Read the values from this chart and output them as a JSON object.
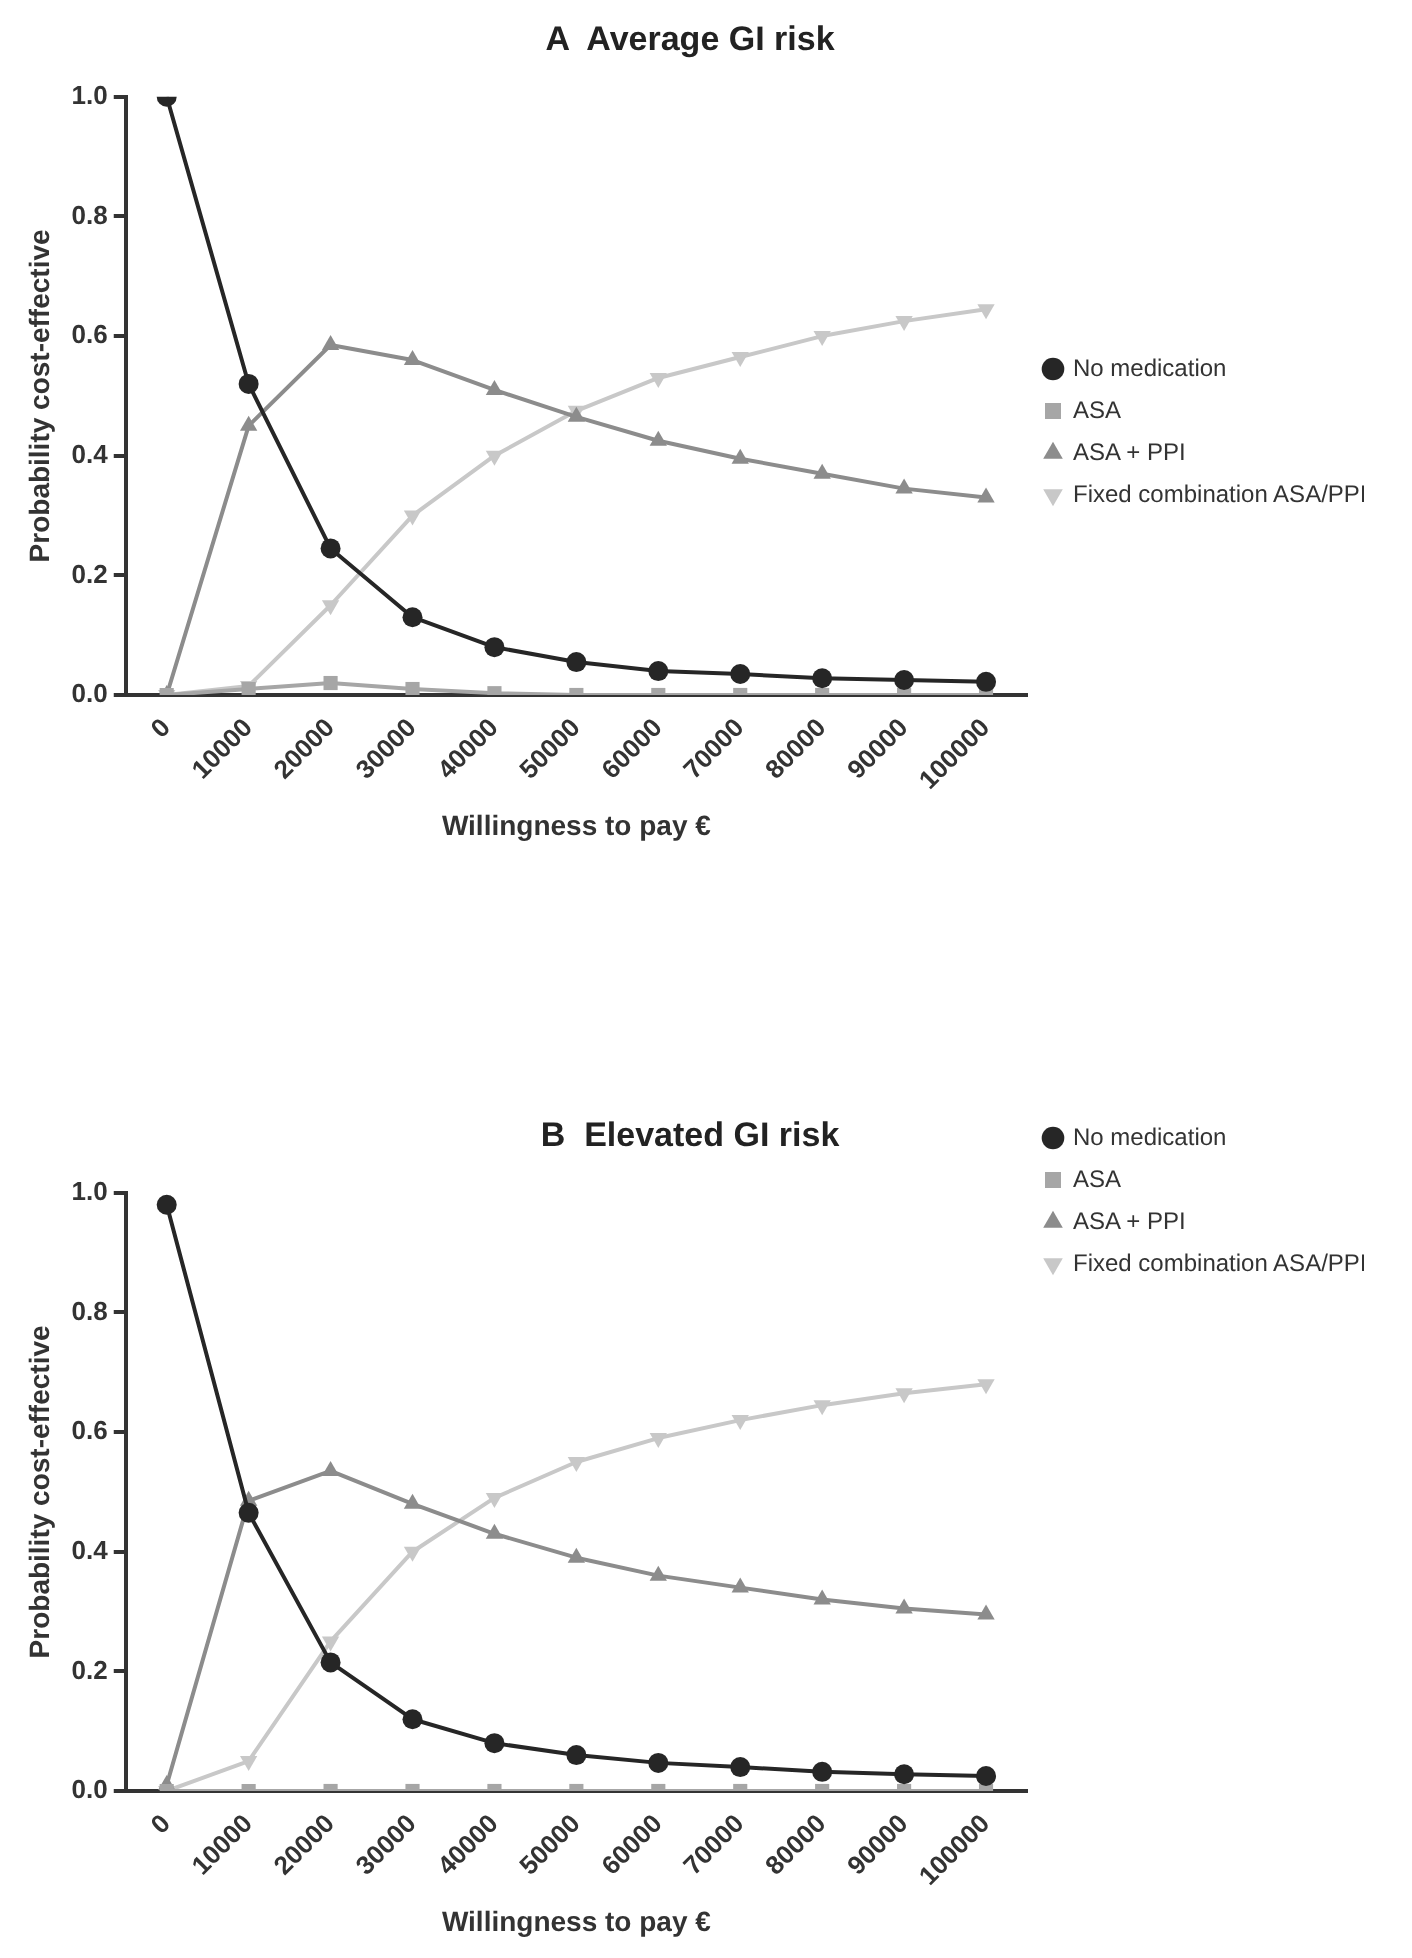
{
  "chart_data": [
    {
      "type": "line",
      "title": "A  Average GI risk",
      "xlabel": "Willingness to pay €",
      "ylabel": "Probability cost-effective",
      "categories": [
        "0",
        "10000",
        "20000",
        "30000",
        "40000",
        "50000",
        "60000",
        "70000",
        "80000",
        "90000",
        "100000"
      ],
      "ylim": [
        0,
        1
      ],
      "yticks": [
        {
          "value": 0,
          "label": "0.0"
        },
        {
          "value": 0.2,
          "label": "0.2"
        },
        {
          "value": 0.4,
          "label": "0.4"
        },
        {
          "value": 0.6,
          "label": "0.6"
        },
        {
          "value": 0.8,
          "label": "0.8"
        },
        {
          "value": 1,
          "label": "1.0"
        }
      ],
      "grid": false,
      "legend": "right",
      "line_style": "solid",
      "series": [
        {
          "name": "No medication",
          "color": "#262626",
          "marker": "circle",
          "values": [
            1.0,
            0.52,
            0.245,
            0.13,
            0.08,
            0.055,
            0.04,
            0.035,
            0.028,
            0.025,
            0.022
          ]
        },
        {
          "name": "ASA",
          "color": "#a6a6a6",
          "marker": "square",
          "values": [
            0,
            0.01,
            0.02,
            0.01,
            0.003,
            0,
            0,
            0,
            0,
            0,
            0
          ]
        },
        {
          "name": "ASA + PPI",
          "color": "#8c8c8c",
          "marker": "triangle",
          "values": [
            0,
            0.45,
            0.585,
            0.56,
            0.51,
            0.465,
            0.425,
            0.395,
            0.37,
            0.345,
            0.33
          ]
        },
        {
          "name": "Fixed combination ASA/PPI",
          "color": "#c8c8c8",
          "marker": "triangle-down",
          "values": [
            0,
            0.015,
            0.15,
            0.3,
            0.4,
            0.475,
            0.53,
            0.565,
            0.6,
            0.625,
            0.645
          ]
        }
      ]
    },
    {
      "type": "line",
      "title": "B  Elevated GI risk",
      "xlabel": "Willingness to pay €",
      "ylabel": "Probability cost-effective",
      "categories": [
        "0",
        "10000",
        "20000",
        "30000",
        "40000",
        "50000",
        "60000",
        "70000",
        "80000",
        "90000",
        "100000"
      ],
      "ylim": [
        0,
        1
      ],
      "yticks": [
        {
          "value": 0,
          "label": "0.0"
        },
        {
          "value": 0.2,
          "label": "0.2"
        },
        {
          "value": 0.4,
          "label": "0.4"
        },
        {
          "value": 0.6,
          "label": "0.6"
        },
        {
          "value": 0.8,
          "label": "0.8"
        },
        {
          "value": 1,
          "label": "1.0"
        }
      ],
      "grid": false,
      "legend": "top right",
      "line_style": "solid",
      "series": [
        {
          "name": "No medication",
          "color": "#262626",
          "marker": "circle",
          "values": [
            0.98,
            0.465,
            0.215,
            0.12,
            0.08,
            0.06,
            0.047,
            0.04,
            0.032,
            0.028,
            0.025
          ]
        },
        {
          "name": "ASA",
          "color": "#a6a6a6",
          "marker": "square",
          "values": [
            0,
            0,
            0,
            0,
            0,
            0,
            0,
            0,
            0,
            0,
            0
          ]
        },
        {
          "name": "ASA + PPI",
          "color": "#8c8c8c",
          "marker": "triangle",
          "values": [
            0.01,
            0.485,
            0.535,
            0.48,
            0.43,
            0.39,
            0.36,
            0.34,
            0.32,
            0.305,
            0.295
          ]
        },
        {
          "name": "Fixed combination ASA/PPI",
          "color": "#c8c8c8",
          "marker": "triangle-down",
          "values": [
            0,
            0.05,
            0.25,
            0.4,
            0.49,
            0.55,
            0.59,
            0.62,
            0.645,
            0.665,
            0.68
          ]
        }
      ]
    }
  ]
}
